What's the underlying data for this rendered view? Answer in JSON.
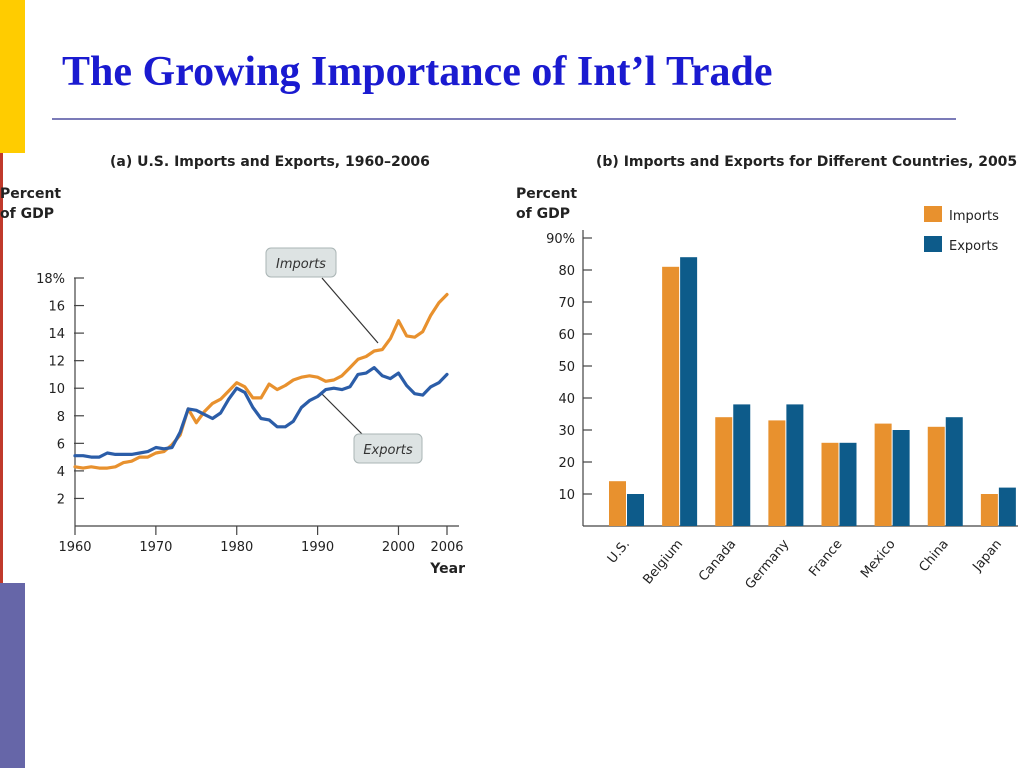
{
  "slide": {
    "title": "The Growing Importance of Int’l Trade",
    "accent_colors": {
      "yellow": "#ffcc00",
      "red": "#c0392b",
      "purple": "#6666a8",
      "title_blue": "#1a1ad0"
    }
  },
  "chart_data": [
    {
      "type": "line",
      "title": "(a) U.S. Imports and Exports, 1960–2006",
      "ylabel_line1": "Percent",
      "ylabel_line2": "of GDP",
      "xlabel": "Year",
      "ylim": [
        0,
        18
      ],
      "xlim": [
        1960,
        2006
      ],
      "ytick_values": [
        2,
        4,
        6,
        8,
        10,
        12,
        14,
        16,
        18
      ],
      "ytick_labels": [
        "2",
        "4",
        "6",
        "8",
        "10",
        "12",
        "14",
        "16",
        "18%"
      ],
      "xtick_values": [
        1960,
        1970,
        1980,
        1990,
        2000,
        2006
      ],
      "xtick_labels": [
        "1960",
        "1970",
        "1980",
        "1990",
        "2000",
        "2006"
      ],
      "colors": {
        "imports": "#e8912e",
        "exports": "#2b5da8"
      },
      "series": [
        {
          "name": "Imports",
          "x": [
            1960,
            1961,
            1962,
            1963,
            1964,
            1965,
            1966,
            1967,
            1968,
            1969,
            1970,
            1971,
            1972,
            1973,
            1974,
            1975,
            1976,
            1977,
            1978,
            1979,
            1980,
            1981,
            1982,
            1983,
            1984,
            1985,
            1986,
            1987,
            1988,
            1989,
            1990,
            1991,
            1992,
            1993,
            1994,
            1995,
            1996,
            1997,
            1998,
            1999,
            2000,
            2001,
            2002,
            2003,
            2004,
            2005,
            2006
          ],
          "values": [
            4.3,
            4.2,
            4.3,
            4.2,
            4.2,
            4.3,
            4.6,
            4.7,
            5.0,
            5.0,
            5.3,
            5.4,
            5.9,
            6.6,
            8.5,
            7.5,
            8.3,
            8.9,
            9.2,
            9.8,
            10.4,
            10.1,
            9.3,
            9.3,
            10.3,
            9.9,
            10.2,
            10.6,
            10.8,
            10.9,
            10.8,
            10.5,
            10.6,
            10.9,
            11.5,
            12.1,
            12.3,
            12.7,
            12.8,
            13.6,
            14.9,
            13.8,
            13.7,
            14.1,
            15.3,
            16.2,
            16.8
          ]
        },
        {
          "name": "Exports",
          "x": [
            1960,
            1961,
            1962,
            1963,
            1964,
            1965,
            1966,
            1967,
            1968,
            1969,
            1970,
            1971,
            1972,
            1973,
            1974,
            1975,
            1976,
            1977,
            1978,
            1979,
            1980,
            1981,
            1982,
            1983,
            1984,
            1985,
            1986,
            1987,
            1988,
            1989,
            1990,
            1991,
            1992,
            1993,
            1994,
            1995,
            1996,
            1997,
            1998,
            1999,
            2000,
            2001,
            2002,
            2003,
            2004,
            2005,
            2006
          ],
          "values": [
            5.1,
            5.1,
            5.0,
            5.0,
            5.3,
            5.2,
            5.2,
            5.2,
            5.3,
            5.4,
            5.7,
            5.6,
            5.7,
            6.8,
            8.5,
            8.4,
            8.1,
            7.8,
            8.2,
            9.2,
            10.0,
            9.7,
            8.6,
            7.8,
            7.7,
            7.2,
            7.2,
            7.6,
            8.6,
            9.1,
            9.4,
            9.9,
            10.0,
            9.9,
            10.1,
            11.0,
            11.1,
            11.5,
            10.9,
            10.7,
            11.1,
            10.2,
            9.6,
            9.5,
            10.1,
            10.4,
            11.0
          ]
        }
      ],
      "callouts": {
        "imports": "Imports",
        "exports": "Exports"
      }
    },
    {
      "type": "bar",
      "title": "(b) Imports and Exports for Different Countries, 2005",
      "ylabel_line1": "Percent",
      "ylabel_line2": "of GDP",
      "ylim": [
        0,
        90
      ],
      "ytick_values": [
        10,
        20,
        30,
        40,
        50,
        60,
        70,
        80,
        90
      ],
      "ytick_labels": [
        "10",
        "20",
        "30",
        "40",
        "50",
        "60",
        "70",
        "80",
        "90%"
      ],
      "categories": [
        "U.S.",
        "Belgium",
        "Canada",
        "Germany",
        "France",
        "Mexico",
        "China",
        "Japan"
      ],
      "colors": {
        "imports": "#e8912e",
        "exports": "#0d5b8a"
      },
      "legend_position": "top-right",
      "series": [
        {
          "name": "Imports",
          "values": [
            14,
            81,
            34,
            33,
            26,
            32,
            31,
            10
          ]
        },
        {
          "name": "Exports",
          "values": [
            10,
            84,
            38,
            38,
            26,
            30,
            34,
            12
          ]
        }
      ]
    }
  ]
}
